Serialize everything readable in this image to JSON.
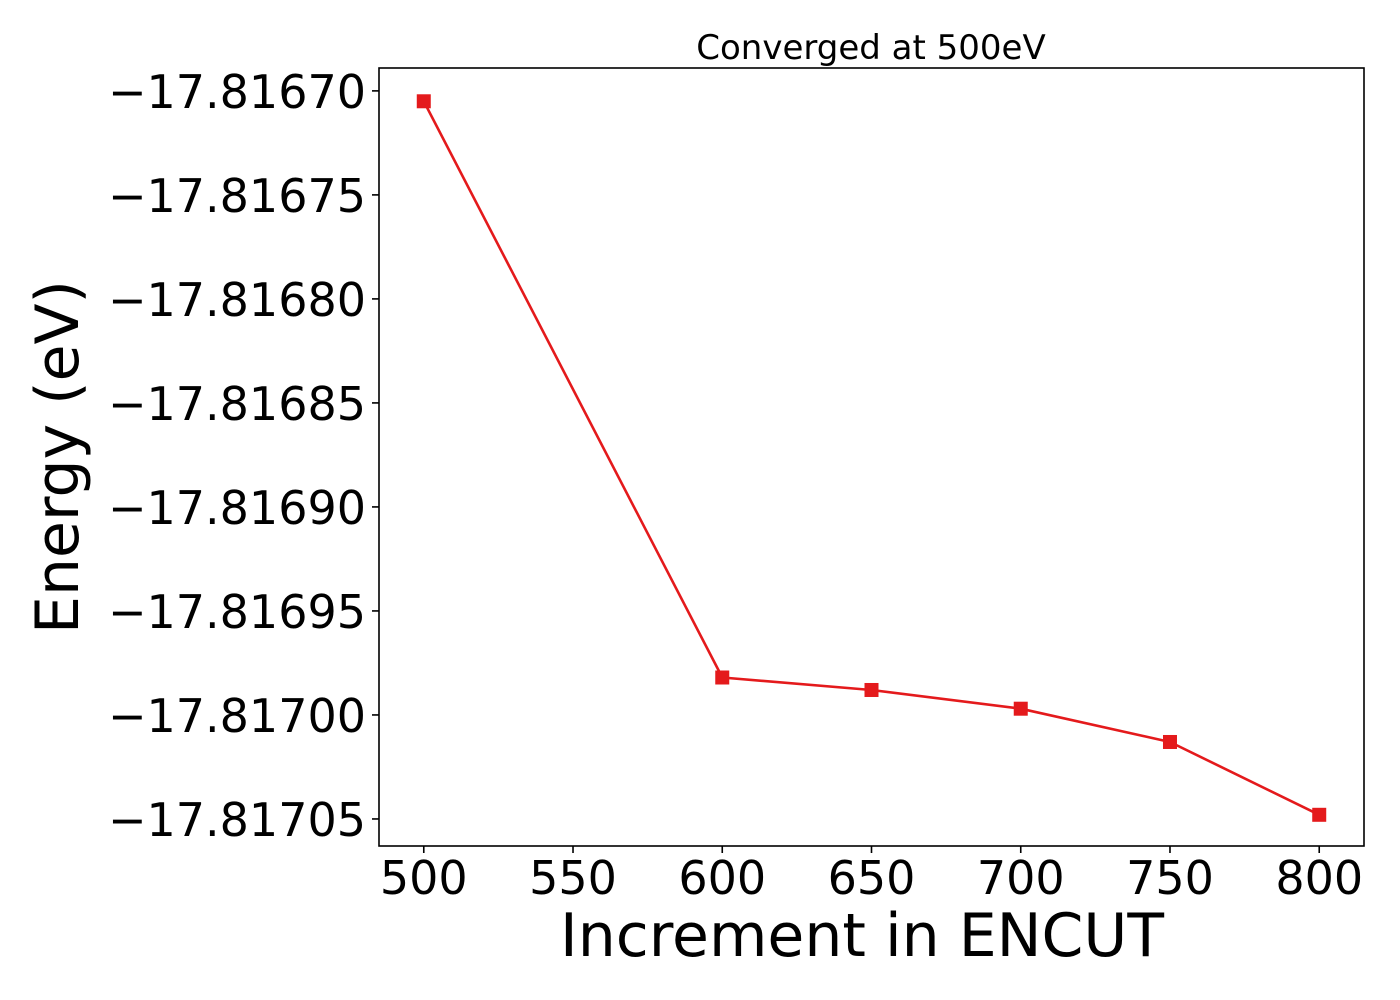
{
  "chart_data": {
    "type": "line",
    "title": "Converged at 500eV",
    "xlabel": "Increment in ENCUT",
    "ylabel": "Energy (eV)",
    "x": [
      500,
      600,
      650,
      700,
      750,
      800
    ],
    "series": [
      {
        "values": [
          -17.816705,
          -17.816982,
          -17.816988,
          -17.816997,
          -17.817013,
          -17.817048
        ],
        "color": "#e41a1c",
        "marker": "square"
      }
    ],
    "xlim": [
      485,
      815
    ],
    "ylim": [
      -17.817063,
      -17.816689
    ],
    "xticks": [
      500,
      550,
      600,
      650,
      700,
      750,
      800
    ],
    "xtick_labels": [
      "500",
      "550",
      "600",
      "650",
      "700",
      "750",
      "800"
    ],
    "yticks": [
      -17.8167,
      -17.81675,
      -17.8168,
      -17.81685,
      -17.8169,
      -17.81695,
      -17.817,
      -17.81705
    ],
    "ytick_labels": [
      "−17.81670",
      "−17.81675",
      "−17.81680",
      "−17.81685",
      "−17.81690",
      "−17.81695",
      "−17.81700",
      "−17.81705"
    ],
    "grid": false,
    "legend": "none"
  }
}
